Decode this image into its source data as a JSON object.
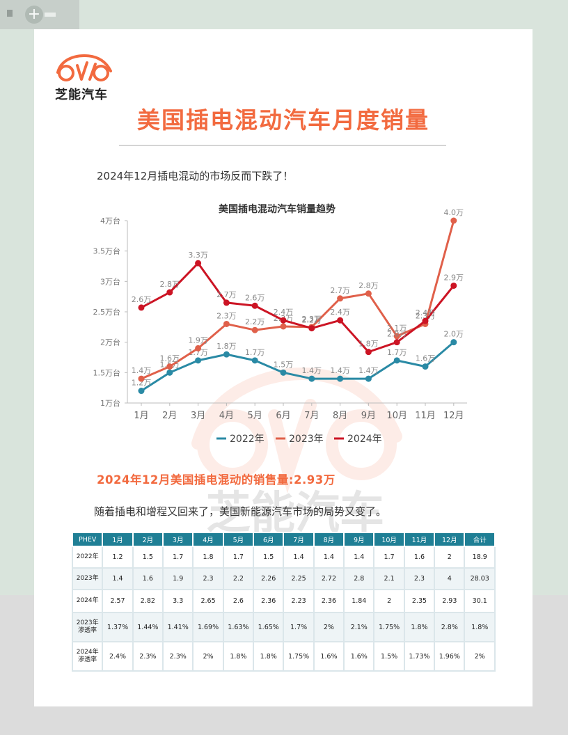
{
  "brand": {
    "name": "芝能汽车",
    "accent": "#f26a3f"
  },
  "title": "美国插电混动汽车月度销量",
  "intro": "2024年12月插电混动的市场反而下跌了！",
  "highlight": "2024年12月美国插电混动的销售量:2.93万",
  "paragraph": "随着插电和增程又回来了，美国新能源汽车市场的局势又变了。",
  "watermark_text": "芝能汽车",
  "chart_data": {
    "type": "line",
    "title": "美国插电混动汽车销量趋势",
    "categories": [
      "1月",
      "2月",
      "3月",
      "4月",
      "5月",
      "6月",
      "7月",
      "8月",
      "9月",
      "10月",
      "11月",
      "12月"
    ],
    "ylim": [
      1,
      4
    ],
    "yticks": [
      {
        "value": 1,
        "label": "1万台"
      },
      {
        "value": 1.5,
        "label": "1.5万台"
      },
      {
        "value": 2,
        "label": "2万台"
      },
      {
        "value": 2.5,
        "label": "2.5万台"
      },
      {
        "value": 3,
        "label": "3万台"
      },
      {
        "value": 3.5,
        "label": "3.5万台"
      },
      {
        "value": 4,
        "label": "4万台"
      }
    ],
    "legend_position": "bottom",
    "grid": false,
    "series": [
      {
        "name": "2022年",
        "color": "#2a8aa5",
        "values": [
          1.2,
          1.5,
          1.7,
          1.8,
          1.7,
          1.5,
          1.4,
          1.4,
          1.4,
          1.7,
          1.6,
          2.0
        ],
        "labels": [
          "1.2万",
          "1.5万",
          "1.7万",
          "1.8万",
          "1.7万",
          "1.5万",
          "1.4万",
          "1.4万",
          "1.4万",
          "1.7万",
          "1.6万",
          "2.0万"
        ]
      },
      {
        "name": "2023年",
        "color": "#e0604a",
        "values": [
          1.4,
          1.6,
          1.9,
          2.3,
          2.2,
          2.26,
          2.25,
          2.72,
          2.8,
          2.1,
          2.3,
          4.0
        ],
        "labels": [
          "1.4万",
          "1.6万",
          "1.9万",
          "2.3万",
          "2.2万",
          "2.3万",
          "2.3万",
          "2.7万",
          "2.8万",
          "2.1万",
          "2.3万",
          "4.0万"
        ]
      },
      {
        "name": "2024年",
        "color": "#cc1424",
        "values": [
          2.57,
          2.82,
          3.3,
          2.65,
          2.6,
          2.36,
          2.23,
          2.36,
          1.84,
          2.0,
          2.35,
          2.93
        ],
        "labels": [
          "2.6万",
          "2.8万",
          "3.3万",
          "2.7万",
          "2.6万",
          "2.4万",
          "2.2万",
          "2.4万",
          "1.8万",
          "2.0万",
          "2.4万",
          "2.9万"
        ]
      }
    ]
  },
  "table": {
    "headers": [
      "PHEV",
      "1月",
      "2月",
      "3月",
      "4月",
      "5月",
      "6月",
      "7月",
      "8月",
      "9月",
      "10月",
      "11月",
      "12月",
      "合计"
    ],
    "rows": [
      {
        "label": [
          "2022年"
        ],
        "cells": [
          "1.2",
          "1.5",
          "1.7",
          "1.8",
          "1.7",
          "1.5",
          "1.4",
          "1.4",
          "1.4",
          "1.7",
          "1.6",
          "2",
          "18.9"
        ]
      },
      {
        "label": [
          "2023年"
        ],
        "cells": [
          "1.4",
          "1.6",
          "1.9",
          "2.3",
          "2.2",
          "2.26",
          "2.25",
          "2.72",
          "2.8",
          "2.1",
          "2.3",
          "4",
          "28.03"
        ]
      },
      {
        "label": [
          "2024年"
        ],
        "cells": [
          "2.57",
          "2.82",
          "3.3",
          "2.65",
          "2.6",
          "2.36",
          "2.23",
          "2.36",
          "1.84",
          "2",
          "2.35",
          "2.93",
          "30.1"
        ]
      },
      {
        "label": [
          "2023年",
          "渗透率"
        ],
        "cells": [
          "1.37%",
          "1.44%",
          "1.41%",
          "1.69%",
          "1.63%",
          "1.65%",
          "1.7%",
          "2%",
          "2.1%",
          "1.75%",
          "1.8%",
          "2.8%",
          "1.8%"
        ]
      },
      {
        "label": [
          "2024年",
          "渗透率"
        ],
        "cells": [
          "2.4%",
          "2.3%",
          "2.3%",
          "2%",
          "1.8%",
          "1.8%",
          "1.75%",
          "1.6%",
          "1.6%",
          "1.5%",
          "1.73%",
          "1.96%",
          "2%"
        ]
      }
    ]
  }
}
